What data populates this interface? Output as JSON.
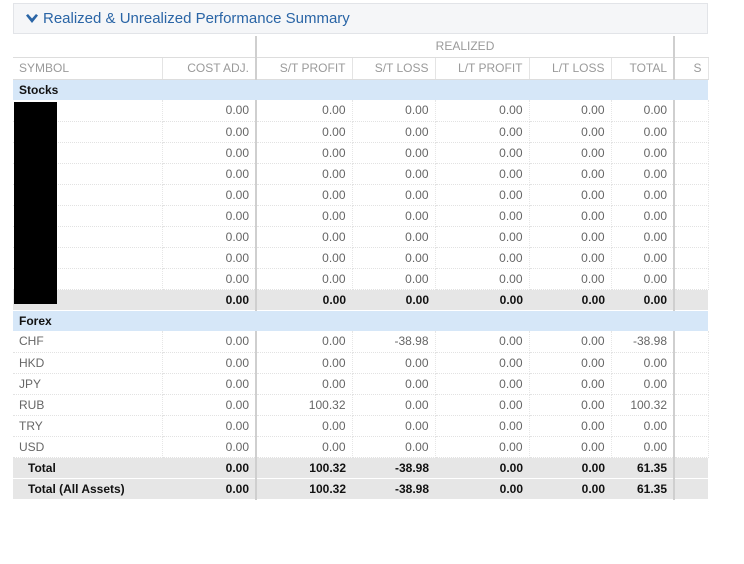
{
  "header": {
    "title": "Realized & Unrealized Performance Summary",
    "icon": "chevron-down-icon",
    "title_color": "#2a65a6"
  },
  "table": {
    "group_label": "REALIZED",
    "columns": [
      "SYMBOL",
      "COST ADJ.",
      "S/T PROFIT",
      "S/T LOSS",
      "L/T PROFIT",
      "L/T LOSS",
      "TOTAL",
      "S"
    ],
    "sections": [
      {
        "label": "Stocks",
        "rows": [
          {
            "symbol": "",
            "values": [
              "0.00",
              "0.00",
              "0.00",
              "0.00",
              "0.00",
              "0.00"
            ]
          },
          {
            "symbol": "",
            "values": [
              "0.00",
              "0.00",
              "0.00",
              "0.00",
              "0.00",
              "0.00"
            ]
          },
          {
            "symbol": "",
            "values": [
              "0.00",
              "0.00",
              "0.00",
              "0.00",
              "0.00",
              "0.00"
            ]
          },
          {
            "symbol": "",
            "values": [
              "0.00",
              "0.00",
              "0.00",
              "0.00",
              "0.00",
              "0.00"
            ]
          },
          {
            "symbol": "",
            "values": [
              "0.00",
              "0.00",
              "0.00",
              "0.00",
              "0.00",
              "0.00"
            ]
          },
          {
            "symbol": "",
            "values": [
              "0.00",
              "0.00",
              "0.00",
              "0.00",
              "0.00",
              "0.00"
            ]
          },
          {
            "symbol": "",
            "values": [
              "0.00",
              "0.00",
              "0.00",
              "0.00",
              "0.00",
              "0.00"
            ]
          },
          {
            "symbol": "",
            "values": [
              "0.00",
              "0.00",
              "0.00",
              "0.00",
              "0.00",
              "0.00"
            ]
          },
          {
            "symbol": "",
            "values": [
              "0.00",
              "0.00",
              "0.00",
              "0.00",
              "0.00",
              "0.00"
            ]
          }
        ],
        "totals": [
          {
            "label": "Total",
            "values": [
              "0.00",
              "0.00",
              "0.00",
              "0.00",
              "0.00",
              "0.00"
            ]
          }
        ]
      },
      {
        "label": "Forex",
        "rows": [
          {
            "symbol": "CHF",
            "values": [
              "0.00",
              "0.00",
              "-38.98",
              "0.00",
              "0.00",
              "-38.98"
            ]
          },
          {
            "symbol": "HKD",
            "values": [
              "0.00",
              "0.00",
              "0.00",
              "0.00",
              "0.00",
              "0.00"
            ]
          },
          {
            "symbol": "JPY",
            "values": [
              "0.00",
              "0.00",
              "0.00",
              "0.00",
              "0.00",
              "0.00"
            ]
          },
          {
            "symbol": "RUB",
            "values": [
              "0.00",
              "100.32",
              "0.00",
              "0.00",
              "0.00",
              "100.32"
            ]
          },
          {
            "symbol": "TRY",
            "values": [
              "0.00",
              "0.00",
              "0.00",
              "0.00",
              "0.00",
              "0.00"
            ]
          },
          {
            "symbol": "USD",
            "values": [
              "0.00",
              "0.00",
              "0.00",
              "0.00",
              "0.00",
              "0.00"
            ]
          }
        ],
        "totals": [
          {
            "label": "Total",
            "values": [
              "0.00",
              "100.32",
              "-38.98",
              "0.00",
              "0.00",
              "61.35"
            ]
          },
          {
            "label": "Total (All Assets)",
            "values": [
              "0.00",
              "100.32",
              "-38.98",
              "0.00",
              "0.00",
              "61.35"
            ]
          }
        ]
      }
    ]
  }
}
